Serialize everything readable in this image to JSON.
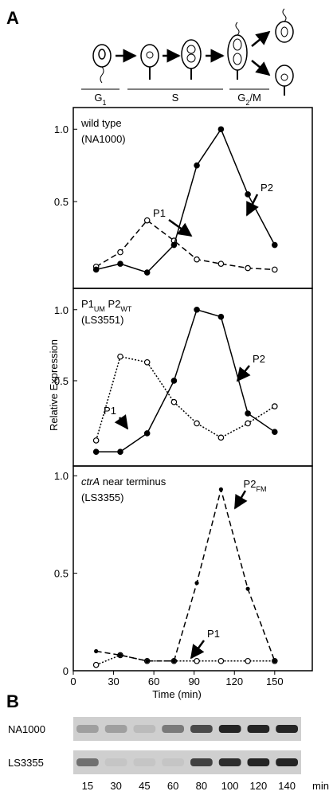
{
  "panel_labels": [
    "A",
    "B"
  ],
  "diagram": {
    "phases": [
      {
        "main": "G",
        "sub": "1"
      },
      {
        "main": "S"
      },
      {
        "main": "G",
        "sub": "2",
        "tail": "/M"
      }
    ]
  },
  "chart_data": [
    {
      "type": "line",
      "annotation": [
        {
          "text": "wild type"
        }
      ],
      "strain": "(NA1000)",
      "x": [
        17,
        35,
        55,
        75,
        92,
        110,
        130,
        150
      ],
      "xlim": [
        0,
        178
      ],
      "ylim": [
        -0.1,
        1.15
      ],
      "yticks": [
        {
          "value": 0.5,
          "label": "0.5"
        },
        {
          "value": 1,
          "label": "1.0"
        }
      ],
      "series": [
        {
          "name": "P1",
          "color": "#000000",
          "dash": "dashed",
          "marker": "open",
          "values": [
            0.05,
            0.15,
            0.37,
            0.23,
            0.1,
            0.07,
            0.04,
            0.03
          ]
        },
        {
          "name": "P2",
          "color": "#000000",
          "dash": "solid",
          "marker": "filled",
          "values": [
            0.03,
            0.07,
            0.01,
            0.2,
            0.75,
            1.0,
            0.55,
            0.2
          ]
        }
      ]
    },
    {
      "type": "line",
      "annotation": [
        {
          "text": "P1",
          "sub": "UM"
        },
        {
          "text": " P2",
          "sub": "WT"
        }
      ],
      "strain": "(LS3551)",
      "ylabel": "Relative Expression",
      "x": [
        17,
        35,
        55,
        75,
        92,
        110,
        130,
        150
      ],
      "xlim": [
        0,
        178
      ],
      "ylim": [
        -0.1,
        1.15
      ],
      "yticks": [
        {
          "value": 0.5,
          "label": "0.5"
        },
        {
          "value": 1,
          "label": "1.0"
        }
      ],
      "series": [
        {
          "name": "P1",
          "color": "#000000",
          "dash": "dotted",
          "marker": "open",
          "values": [
            0.08,
            0.67,
            0.63,
            0.35,
            0.2,
            0.1,
            0.2,
            0.32
          ]
        },
        {
          "name": "P2",
          "color": "#000000",
          "dash": "solid",
          "marker": "filled",
          "values": [
            0,
            0,
            0.13,
            0.5,
            1.0,
            0.95,
            0.27,
            0.14
          ]
        }
      ]
    },
    {
      "type": "line",
      "annotation": [
        {
          "text": "ctrA",
          "italic": true
        },
        {
          "text": " near terminus"
        }
      ],
      "strain": "(LS3355)",
      "xlabel": "Time (min)",
      "x": [
        17,
        35,
        55,
        75,
        92,
        110,
        130,
        150
      ],
      "xlim": [
        0,
        178
      ],
      "xticks": [
        0,
        30,
        60,
        90,
        120,
        150
      ],
      "ylim": [
        0,
        1.05
      ],
      "yticks": [
        0,
        {
          "value": 0.5,
          "label": "0.5"
        },
        {
          "value": 1,
          "label": "1.0"
        }
      ],
      "series": [
        {
          "name": "P1",
          "color": "#000000",
          "dash": "dotted",
          "marker": "open",
          "values": [
            0.03,
            0.08,
            0.05,
            0.05,
            0.05,
            0.05,
            0.05,
            0.05
          ]
        },
        {
          "name": "P2",
          "name_sub": "FM",
          "color": "#000000",
          "dash": "dashed",
          "marker": "small",
          "values": [
            0.1,
            0.08,
            0.05,
            0.05,
            0.45,
            0.93,
            0.42,
            0.05
          ]
        }
      ]
    }
  ],
  "gel": {
    "rows": [
      "NA1000",
      "LS3355"
    ],
    "lanes": [
      15,
      30,
      45,
      60,
      80,
      100,
      120,
      140
    ],
    "unit": "min"
  }
}
